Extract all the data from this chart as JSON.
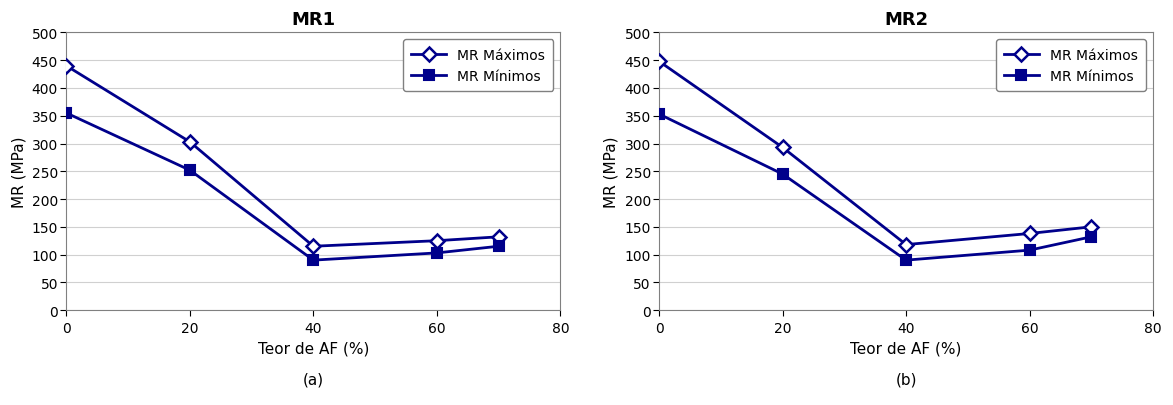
{
  "chart1": {
    "title": "MR1",
    "x": [
      0,
      20,
      40,
      60,
      70
    ],
    "mr_max": [
      440,
      303,
      115,
      125,
      132
    ],
    "mr_min": [
      355,
      252,
      90,
      103,
      115
    ],
    "xlabel": "Teor de AF (%)",
    "ylabel": "MR (MPa)",
    "label_a": "(a)"
  },
  "chart2": {
    "title": "MR2",
    "x": [
      0,
      20,
      40,
      60,
      70
    ],
    "mr_max": [
      448,
      293,
      118,
      138,
      150
    ],
    "mr_min": [
      353,
      245,
      90,
      108,
      132
    ],
    "xlabel": "Teor de AF (%)",
    "ylabel": "MR (MPa)",
    "label_b": "(b)"
  },
  "line_color": "#00008B",
  "legend_max": "MR Máximos",
  "legend_min": "MR Mínimos",
  "ylim": [
    0,
    500
  ],
  "xlim": [
    0,
    80
  ],
  "yticks": [
    0,
    50,
    100,
    150,
    200,
    250,
    300,
    350,
    400,
    450,
    500
  ],
  "xticks": [
    0,
    20,
    40,
    60,
    80
  ],
  "title_fontsize": 13,
  "label_fontsize": 11,
  "tick_fontsize": 10,
  "legend_fontsize": 10,
  "linewidth": 2.0,
  "markersize": 7,
  "bg_color": "#ffffff",
  "grid_color": "#d0d0d0"
}
